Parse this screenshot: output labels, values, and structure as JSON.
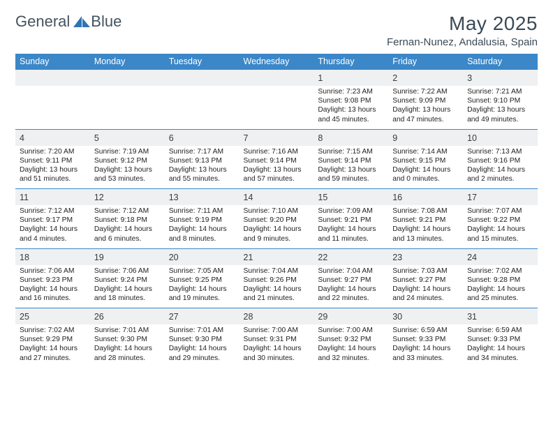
{
  "logo": {
    "text1": "General",
    "text2": "Blue",
    "text_color": "#44535e",
    "accent_color": "#2d74b5"
  },
  "title": "May 2025",
  "location": "Fernan-Nunez, Andalusia, Spain",
  "colors": {
    "header_bg": "#3b87c8",
    "header_text": "#ffffff",
    "daynum_bg": "#eef0f1",
    "border": "#3b87c8",
    "body_text": "#222222",
    "title_text": "#3b4a56"
  },
  "days_of_week": [
    "Sunday",
    "Monday",
    "Tuesday",
    "Wednesday",
    "Thursday",
    "Friday",
    "Saturday"
  ],
  "weeks": [
    [
      {
        "n": "",
        "sr": "",
        "ss": "",
        "dl": ""
      },
      {
        "n": "",
        "sr": "",
        "ss": "",
        "dl": ""
      },
      {
        "n": "",
        "sr": "",
        "ss": "",
        "dl": ""
      },
      {
        "n": "",
        "sr": "",
        "ss": "",
        "dl": ""
      },
      {
        "n": "1",
        "sr": "Sunrise: 7:23 AM",
        "ss": "Sunset: 9:08 PM",
        "dl": "Daylight: 13 hours and 45 minutes."
      },
      {
        "n": "2",
        "sr": "Sunrise: 7:22 AM",
        "ss": "Sunset: 9:09 PM",
        "dl": "Daylight: 13 hours and 47 minutes."
      },
      {
        "n": "3",
        "sr": "Sunrise: 7:21 AM",
        "ss": "Sunset: 9:10 PM",
        "dl": "Daylight: 13 hours and 49 minutes."
      }
    ],
    [
      {
        "n": "4",
        "sr": "Sunrise: 7:20 AM",
        "ss": "Sunset: 9:11 PM",
        "dl": "Daylight: 13 hours and 51 minutes."
      },
      {
        "n": "5",
        "sr": "Sunrise: 7:19 AM",
        "ss": "Sunset: 9:12 PM",
        "dl": "Daylight: 13 hours and 53 minutes."
      },
      {
        "n": "6",
        "sr": "Sunrise: 7:17 AM",
        "ss": "Sunset: 9:13 PM",
        "dl": "Daylight: 13 hours and 55 minutes."
      },
      {
        "n": "7",
        "sr": "Sunrise: 7:16 AM",
        "ss": "Sunset: 9:14 PM",
        "dl": "Daylight: 13 hours and 57 minutes."
      },
      {
        "n": "8",
        "sr": "Sunrise: 7:15 AM",
        "ss": "Sunset: 9:14 PM",
        "dl": "Daylight: 13 hours and 59 minutes."
      },
      {
        "n": "9",
        "sr": "Sunrise: 7:14 AM",
        "ss": "Sunset: 9:15 PM",
        "dl": "Daylight: 14 hours and 0 minutes."
      },
      {
        "n": "10",
        "sr": "Sunrise: 7:13 AM",
        "ss": "Sunset: 9:16 PM",
        "dl": "Daylight: 14 hours and 2 minutes."
      }
    ],
    [
      {
        "n": "11",
        "sr": "Sunrise: 7:12 AM",
        "ss": "Sunset: 9:17 PM",
        "dl": "Daylight: 14 hours and 4 minutes."
      },
      {
        "n": "12",
        "sr": "Sunrise: 7:12 AM",
        "ss": "Sunset: 9:18 PM",
        "dl": "Daylight: 14 hours and 6 minutes."
      },
      {
        "n": "13",
        "sr": "Sunrise: 7:11 AM",
        "ss": "Sunset: 9:19 PM",
        "dl": "Daylight: 14 hours and 8 minutes."
      },
      {
        "n": "14",
        "sr": "Sunrise: 7:10 AM",
        "ss": "Sunset: 9:20 PM",
        "dl": "Daylight: 14 hours and 9 minutes."
      },
      {
        "n": "15",
        "sr": "Sunrise: 7:09 AM",
        "ss": "Sunset: 9:21 PM",
        "dl": "Daylight: 14 hours and 11 minutes."
      },
      {
        "n": "16",
        "sr": "Sunrise: 7:08 AM",
        "ss": "Sunset: 9:21 PM",
        "dl": "Daylight: 14 hours and 13 minutes."
      },
      {
        "n": "17",
        "sr": "Sunrise: 7:07 AM",
        "ss": "Sunset: 9:22 PM",
        "dl": "Daylight: 14 hours and 15 minutes."
      }
    ],
    [
      {
        "n": "18",
        "sr": "Sunrise: 7:06 AM",
        "ss": "Sunset: 9:23 PM",
        "dl": "Daylight: 14 hours and 16 minutes."
      },
      {
        "n": "19",
        "sr": "Sunrise: 7:06 AM",
        "ss": "Sunset: 9:24 PM",
        "dl": "Daylight: 14 hours and 18 minutes."
      },
      {
        "n": "20",
        "sr": "Sunrise: 7:05 AM",
        "ss": "Sunset: 9:25 PM",
        "dl": "Daylight: 14 hours and 19 minutes."
      },
      {
        "n": "21",
        "sr": "Sunrise: 7:04 AM",
        "ss": "Sunset: 9:26 PM",
        "dl": "Daylight: 14 hours and 21 minutes."
      },
      {
        "n": "22",
        "sr": "Sunrise: 7:04 AM",
        "ss": "Sunset: 9:27 PM",
        "dl": "Daylight: 14 hours and 22 minutes."
      },
      {
        "n": "23",
        "sr": "Sunrise: 7:03 AM",
        "ss": "Sunset: 9:27 PM",
        "dl": "Daylight: 14 hours and 24 minutes."
      },
      {
        "n": "24",
        "sr": "Sunrise: 7:02 AM",
        "ss": "Sunset: 9:28 PM",
        "dl": "Daylight: 14 hours and 25 minutes."
      }
    ],
    [
      {
        "n": "25",
        "sr": "Sunrise: 7:02 AM",
        "ss": "Sunset: 9:29 PM",
        "dl": "Daylight: 14 hours and 27 minutes."
      },
      {
        "n": "26",
        "sr": "Sunrise: 7:01 AM",
        "ss": "Sunset: 9:30 PM",
        "dl": "Daylight: 14 hours and 28 minutes."
      },
      {
        "n": "27",
        "sr": "Sunrise: 7:01 AM",
        "ss": "Sunset: 9:30 PM",
        "dl": "Daylight: 14 hours and 29 minutes."
      },
      {
        "n": "28",
        "sr": "Sunrise: 7:00 AM",
        "ss": "Sunset: 9:31 PM",
        "dl": "Daylight: 14 hours and 30 minutes."
      },
      {
        "n": "29",
        "sr": "Sunrise: 7:00 AM",
        "ss": "Sunset: 9:32 PM",
        "dl": "Daylight: 14 hours and 32 minutes."
      },
      {
        "n": "30",
        "sr": "Sunrise: 6:59 AM",
        "ss": "Sunset: 9:33 PM",
        "dl": "Daylight: 14 hours and 33 minutes."
      },
      {
        "n": "31",
        "sr": "Sunrise: 6:59 AM",
        "ss": "Sunset: 9:33 PM",
        "dl": "Daylight: 14 hours and 34 minutes."
      }
    ]
  ]
}
